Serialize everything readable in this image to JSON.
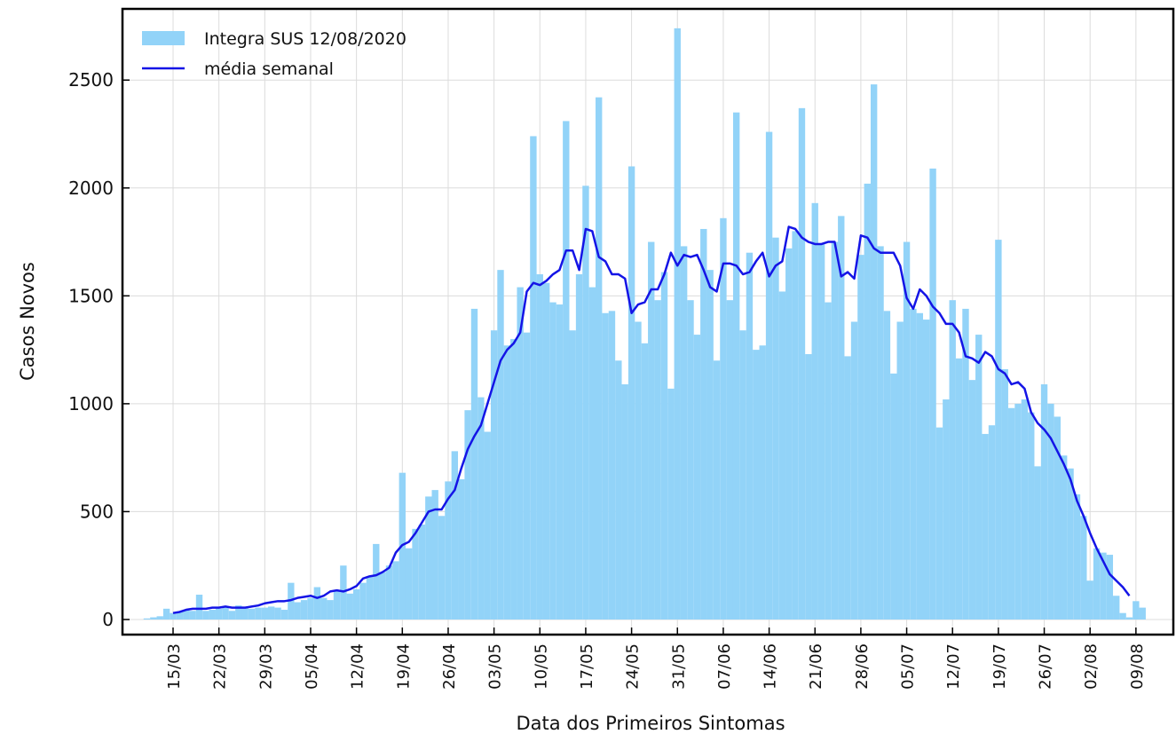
{
  "chart_data": {
    "type": "bar",
    "xlabel": "Data dos Primeiros Sintomas",
    "ylabel": "Casos Novos",
    "categories": [
      null,
      null,
      null,
      null,
      "15/03",
      null,
      null,
      null,
      null,
      null,
      null,
      "22/03",
      null,
      null,
      null,
      null,
      null,
      null,
      "29/03",
      null,
      null,
      null,
      null,
      null,
      null,
      "05/04",
      null,
      null,
      null,
      null,
      null,
      null,
      "12/04",
      null,
      null,
      null,
      null,
      null,
      null,
      "19/04",
      null,
      null,
      null,
      null,
      null,
      null,
      "26/04",
      null,
      null,
      null,
      null,
      null,
      null,
      "03/05",
      null,
      null,
      null,
      null,
      null,
      null,
      "10/05",
      null,
      null,
      null,
      null,
      null,
      null,
      "17/05",
      null,
      null,
      null,
      null,
      null,
      null,
      "24/05",
      null,
      null,
      null,
      null,
      null,
      null,
      "31/05",
      null,
      null,
      null,
      null,
      null,
      null,
      "07/06",
      null,
      null,
      null,
      null,
      null,
      null,
      "14/06",
      null,
      null,
      null,
      null,
      null,
      null,
      "21/06",
      null,
      null,
      null,
      null,
      null,
      null,
      "28/06",
      null,
      null,
      null,
      null,
      null,
      null,
      "05/07",
      null,
      null,
      null,
      null,
      null,
      null,
      "12/07",
      null,
      null,
      null,
      null,
      null,
      null,
      "19/07",
      null,
      null,
      null,
      null,
      null,
      null,
      "26/07",
      null,
      null,
      null,
      null,
      null,
      null,
      "02/08",
      null,
      null,
      null,
      null,
      null,
      null,
      "09/08",
      null
    ],
    "series": [
      {
        "name": "Integra SUS 12/08/2020",
        "type": "bar",
        "color": "#92d3f8",
        "values": [
          5,
          10,
          15,
          50,
          30,
          35,
          45,
          40,
          115,
          40,
          45,
          50,
          55,
          40,
          65,
          60,
          50,
          55,
          55,
          60,
          55,
          45,
          170,
          80,
          90,
          100,
          150,
          100,
          90,
          130,
          250,
          120,
          140,
          170,
          200,
          350,
          220,
          250,
          270,
          680,
          330,
          420,
          440,
          570,
          600,
          480,
          640,
          780,
          650,
          970,
          1440,
          1030,
          870,
          1340,
          1620,
          1270,
          1300,
          1540,
          1330,
          2240,
          1600,
          1560,
          1470,
          1460,
          2310,
          1340,
          1600,
          2010,
          1540,
          2420,
          1420,
          1430,
          1200,
          1090,
          2100,
          1380,
          1280,
          1750,
          1480,
          1610,
          1070,
          2740,
          1730,
          1480,
          1320,
          1810,
          1620,
          1200,
          1860,
          1480,
          2350,
          1340,
          1700,
          1250,
          1270,
          2260,
          1770,
          1520,
          1720,
          1800,
          2370,
          1230,
          1930,
          1740,
          1470,
          1750,
          1870,
          1220,
          1380,
          1690,
          2020,
          2480,
          1730,
          1430,
          1140,
          1380,
          1750,
          1440,
          1420,
          1390,
          2090,
          890,
          1020,
          1480,
          1210,
          1440,
          1110,
          1320,
          860,
          900,
          1760,
          1160,
          980,
          1000,
          1020,
          960,
          710,
          1090,
          1000,
          940,
          760,
          700,
          580,
          480,
          180,
          330,
          310,
          300,
          110,
          30,
          10,
          85,
          55
        ]
      },
      {
        "name": "média  semanal",
        "type": "line",
        "color": "#1414e6",
        "values": [
          null,
          null,
          null,
          null,
          30,
          35,
          45,
          50,
          50,
          50,
          55,
          55,
          60,
          55,
          55,
          55,
          60,
          65,
          75,
          80,
          85,
          85,
          90,
          100,
          105,
          110,
          100,
          110,
          130,
          135,
          130,
          140,
          155,
          190,
          200,
          205,
          220,
          240,
          310,
          345,
          360,
          400,
          450,
          500,
          510,
          510,
          560,
          600,
          700,
          790,
          850,
          900,
          1000,
          1100,
          1200,
          1250,
          1280,
          1330,
          1520,
          1560,
          1550,
          1570,
          1600,
          1620,
          1710,
          1710,
          1620,
          1810,
          1800,
          1680,
          1660,
          1600,
          1600,
          1580,
          1420,
          1460,
          1470,
          1530,
          1530,
          1600,
          1700,
          1640,
          1690,
          1680,
          1690,
          1620,
          1540,
          1520,
          1650,
          1650,
          1640,
          1600,
          1610,
          1660,
          1700,
          1590,
          1640,
          1660,
          1820,
          1810,
          1770,
          1750,
          1740,
          1740,
          1750,
          1750,
          1590,
          1610,
          1580,
          1780,
          1770,
          1720,
          1700,
          1700,
          1700,
          1640,
          1490,
          1440,
          1530,
          1500,
          1450,
          1420,
          1370,
          1370,
          1330,
          1220,
          1210,
          1190,
          1240,
          1220,
          1160,
          1140,
          1090,
          1100,
          1070,
          960,
          910,
          880,
          840,
          780,
          720,
          650,
          550,
          480,
          400,
          330,
          270,
          210,
          180,
          150,
          110,
          null,
          null
        ]
      }
    ],
    "ylim": [
      -70,
      2830
    ],
    "yticks": [
      0,
      500,
      1000,
      1500,
      2000,
      2500
    ],
    "grid": true,
    "legend": "upper left"
  }
}
